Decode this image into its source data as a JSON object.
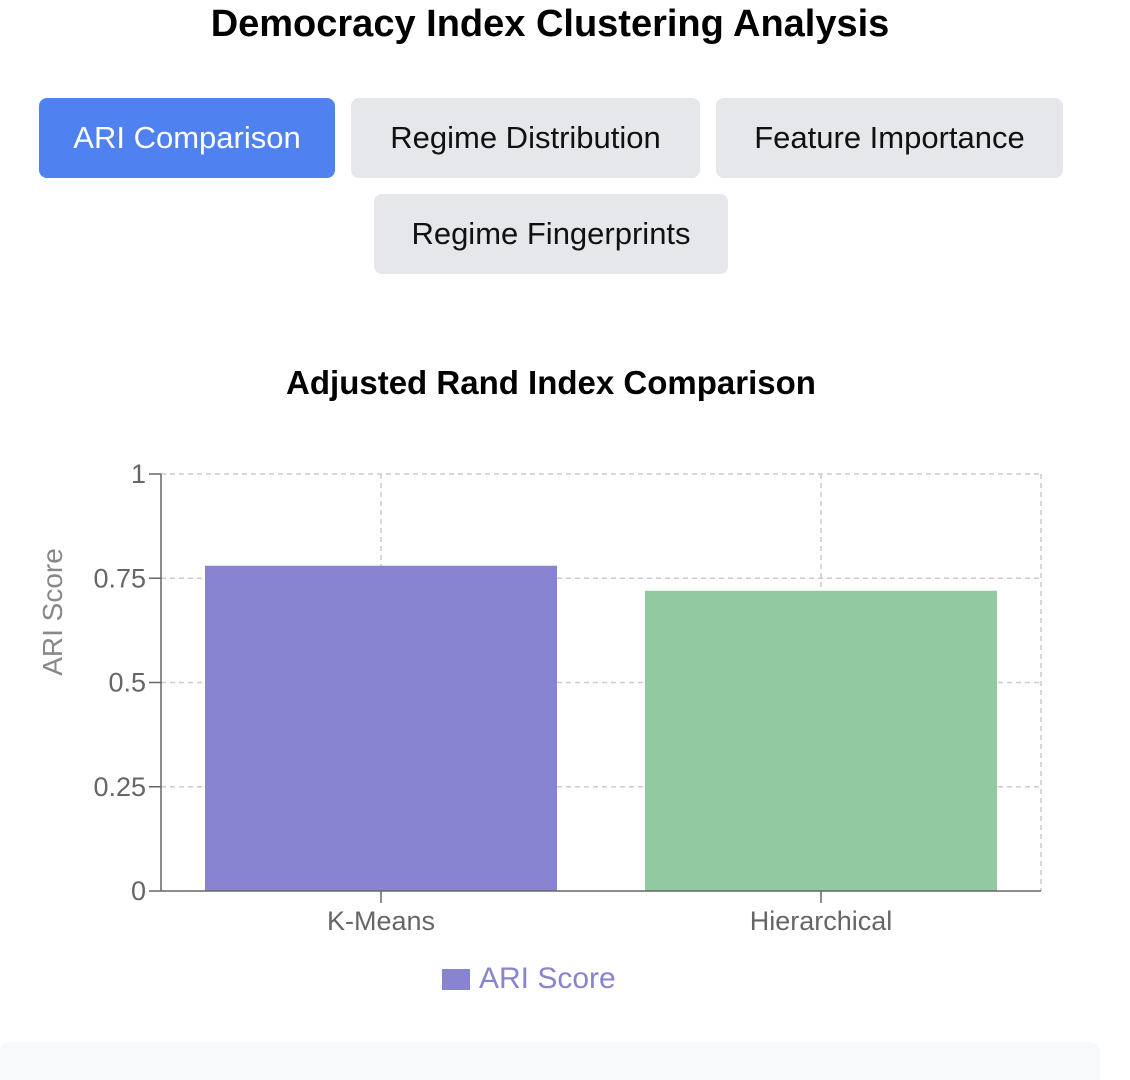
{
  "header": {
    "title": "Democracy Index Clustering Analysis"
  },
  "tabs": [
    {
      "label": "ARI Comparison",
      "active": true
    },
    {
      "label": "Regime Distribution",
      "active": false
    },
    {
      "label": "Feature Importance",
      "active": false
    },
    {
      "label": "Regime Fingerprints",
      "active": false
    }
  ],
  "colors": {
    "tab_active": "#4f82f0",
    "tab_inactive": "#e5e7eb",
    "bar_kmeans": "#8884d0",
    "bar_hierarchical": "#93c9a0"
  },
  "chart_data": {
    "type": "bar",
    "title": "Adjusted Rand Index Comparison",
    "categories": [
      "K-Means",
      "Hierarchical"
    ],
    "series": [
      {
        "name": "ARI Score",
        "values": [
          0.78,
          0.72
        ]
      }
    ],
    "bar_colors": [
      "#8884d0",
      "#93c9a0"
    ],
    "xlabel": "",
    "ylabel": "ARI Score",
    "ylim": [
      0,
      1
    ],
    "yticks": [
      0,
      0.25,
      0.5,
      0.75,
      1
    ],
    "ytick_labels": [
      "0",
      "0.25",
      "0.5",
      "0.75",
      "1"
    ],
    "grid": true,
    "legend_position": "bottom"
  }
}
